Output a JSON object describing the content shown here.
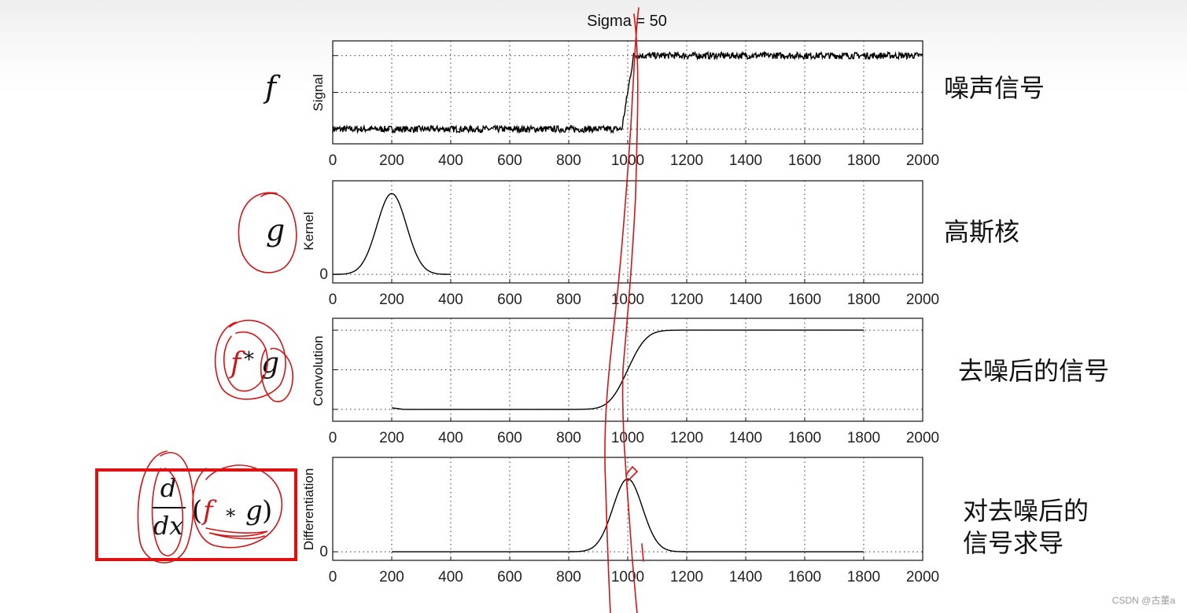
{
  "title": "Sigma = 50",
  "watermark": "CSDN @古董a",
  "highlight_color": "#e01010",
  "annotation_color": "#d01616",
  "formulas": {
    "f": "f",
    "g": "g",
    "conv_f": "f",
    "conv_star": "*",
    "conv_g": "g",
    "deriv_num": "d",
    "deriv_den": "dx",
    "deriv_open": "(",
    "deriv_f": "f",
    "deriv_star": "∗",
    "deriv_g": "g",
    "deriv_close": ")"
  },
  "captions": {
    "signal": "噪声信号",
    "kernel": "高斯核",
    "convolution": "去噪后的信号",
    "differentiation_line1": "对去噪后的",
    "differentiation_line2": "信号求导"
  },
  "chart_data": [
    {
      "type": "line",
      "name": "signal",
      "ylabel": "Signal",
      "xlim": [
        0,
        2000
      ],
      "xticks": [
        "0",
        "200",
        "400",
        "600",
        "800",
        "1000",
        "1200",
        "1400",
        "1600",
        "1800",
        "2000"
      ],
      "ylim": [
        -0.2,
        1.2
      ],
      "grid_y": [
        0,
        0.5,
        1
      ],
      "yticklabels": [],
      "series": [
        {
          "name": "noisy step",
          "x": [
            0,
            980,
            1020,
            2000
          ],
          "y": [
            0,
            0,
            1,
            1
          ],
          "noise": true
        }
      ]
    },
    {
      "type": "line",
      "name": "kernel",
      "ylabel": "Kernel",
      "xlim": [
        0,
        2000
      ],
      "xticks": [
        "0",
        "200",
        "400",
        "600",
        "800",
        "1000",
        "1200",
        "1400",
        "1600",
        "1800",
        "2000"
      ],
      "ylim": [
        -0.1,
        1.1
      ],
      "grid_y": [
        0
      ],
      "yticklabels": [
        "0"
      ],
      "series": [
        {
          "name": "gaussian",
          "x_range": [
            0,
            400
          ],
          "mean": 200,
          "sigma": 50,
          "peak": 0.95
        }
      ]
    },
    {
      "type": "line",
      "name": "convolution",
      "ylabel": "Convolution",
      "xlim": [
        0,
        2000
      ],
      "xticks": [
        "0",
        "200",
        "400",
        "600",
        "800",
        "1000",
        "1200",
        "1400",
        "1600",
        "1800",
        "2000"
      ],
      "ylim": [
        -0.15,
        1.15
      ],
      "grid_y": [
        0,
        0.5,
        1
      ],
      "yticklabels": [],
      "series": [
        {
          "name": "smoothed step",
          "x_range": [
            200,
            1800
          ],
          "center": 1000,
          "sigma": 50
        }
      ]
    },
    {
      "type": "line",
      "name": "differentiation",
      "ylabel": "Differentiation",
      "xlim": [
        0,
        2000
      ],
      "xticks": [
        "0",
        "200",
        "400",
        "600",
        "800",
        "1000",
        "1200",
        "1400",
        "1600",
        "1800",
        "2000"
      ],
      "ylim": [
        -0.1,
        1.1
      ],
      "grid_y": [
        0
      ],
      "yticklabels": [
        "0"
      ],
      "series": [
        {
          "name": "derivative",
          "x_range": [
            200,
            1800
          ],
          "mean": 1000,
          "sigma": 50,
          "peak": 0.85
        }
      ]
    }
  ]
}
